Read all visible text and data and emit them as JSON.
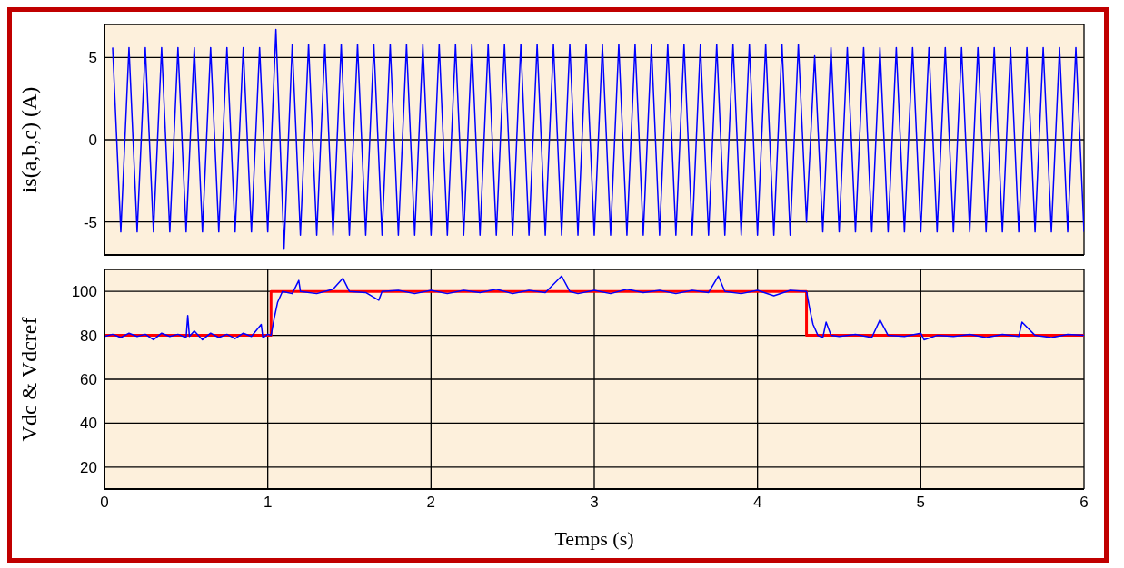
{
  "chart_data": [
    {
      "type": "line",
      "ylabel": "is(a,b,c) (A)",
      "xlim": [
        0,
        6
      ],
      "xticks": [
        0,
        1,
        2,
        3,
        4,
        5,
        6
      ],
      "ylim": [
        -7,
        7
      ],
      "yticks": [
        -5,
        0,
        5
      ],
      "grid": true,
      "tick_labels": "y",
      "series": [
        {
          "color": "#0000ff",
          "x": [
            0.05,
            0.1,
            0.15,
            0.2,
            0.25,
            0.3,
            0.35,
            0.4,
            0.45,
            0.5,
            0.55,
            0.6,
            0.65,
            0.7,
            0.75,
            0.8,
            0.85,
            0.9,
            0.95,
            1,
            1.05,
            1.1,
            1.15,
            1.2,
            1.25,
            1.3,
            1.35,
            1.4,
            1.45,
            1.5,
            1.55,
            1.6,
            1.65,
            1.7,
            1.75,
            1.8,
            1.85,
            1.9,
            1.95,
            2,
            2.05,
            2.1,
            2.15,
            2.2,
            2.25,
            2.3,
            2.35,
            2.4,
            2.45,
            2.5,
            2.55,
            2.6,
            2.65,
            2.7,
            2.75,
            2.8,
            2.85,
            2.9,
            2.95,
            3,
            3.05,
            3.1,
            3.15,
            3.2,
            3.25,
            3.3,
            3.35,
            3.4,
            3.45,
            3.5,
            3.55,
            3.6,
            3.65,
            3.7,
            3.75,
            3.8,
            3.85,
            3.9,
            3.95,
            4,
            4.05,
            4.1,
            4.15,
            4.2,
            4.25,
            4.3,
            4.35,
            4.4,
            4.45,
            4.5,
            4.55,
            4.6,
            4.65,
            4.7,
            4.75,
            4.8,
            4.85,
            4.9,
            4.95,
            5,
            5.05,
            5.1,
            5.15,
            5.2,
            5.25,
            5.3,
            5.35,
            5.4,
            5.45,
            5.5,
            5.55,
            5.6,
            5.65,
            5.7,
            5.75,
            5.8,
            5.85,
            5.9,
            5.95,
            6
          ],
          "values": [
            5.6,
            -5.6,
            5.6,
            -5.6,
            5.6,
            -5.6,
            5.6,
            -5.6,
            5.6,
            -5.6,
            5.6,
            -5.6,
            5.6,
            -5.6,
            5.6,
            -5.6,
            5.6,
            -5.6,
            5.6,
            -5.6,
            6.7,
            -6.6,
            5.8,
            -5.8,
            5.8,
            -5.8,
            5.8,
            -5.8,
            5.8,
            -5.8,
            5.8,
            -5.8,
            5.8,
            -5.8,
            5.8,
            -5.8,
            5.8,
            -5.8,
            5.8,
            -5.8,
            5.8,
            -5.8,
            5.8,
            -5.8,
            5.8,
            -5.8,
            5.8,
            -5.8,
            5.8,
            -5.8,
            5.8,
            -5.8,
            5.8,
            -5.8,
            5.8,
            -5.8,
            5.8,
            -5.8,
            5.8,
            -5.8,
            5.8,
            -5.8,
            5.8,
            -5.8,
            5.8,
            -5.8,
            5.8,
            -5.8,
            5.8,
            -5.8,
            5.8,
            -5.8,
            5.8,
            -5.8,
            5.8,
            -5.8,
            5.8,
            -5.8,
            5.8,
            -5.8,
            5.8,
            -5.8,
            5.8,
            -5.8,
            5.8,
            -5.0,
            5.1,
            -5.6,
            5.6,
            -5.6,
            5.6,
            -5.6,
            5.6,
            -5.6,
            5.6,
            -5.6,
            5.6,
            -5.6,
            5.6,
            -5.6,
            5.6,
            -5.6,
            5.6,
            -5.6,
            5.6,
            -5.6,
            5.6,
            -5.6,
            5.6,
            -5.6,
            5.6,
            -5.6,
            5.6,
            -5.6,
            5.6,
            -5.6,
            5.6,
            -5.6,
            5.6,
            -5.6
          ]
        }
      ]
    },
    {
      "type": "line",
      "ylabel": "Vdc & Vdcref",
      "xlabel": "Temps (s)",
      "xlim": [
        0,
        6
      ],
      "xticks": [
        0,
        1,
        2,
        3,
        4,
        5,
        6
      ],
      "ylim": [
        10,
        110
      ],
      "yticks": [
        20,
        40,
        60,
        80,
        100
      ],
      "grid": true,
      "series": [
        {
          "color": "#ff0000",
          "type": "step",
          "x": [
            0,
            1.02,
            4.3,
            6
          ],
          "values": [
            80,
            100,
            80,
            80
          ]
        },
        {
          "color": "#0000ff",
          "x": [
            0,
            0.05,
            0.1,
            0.15,
            0.2,
            0.25,
            0.3,
            0.35,
            0.4,
            0.45,
            0.5,
            0.51,
            0.52,
            0.55,
            0.6,
            0.65,
            0.7,
            0.75,
            0.8,
            0.85,
            0.9,
            0.96,
            0.97,
            1,
            1.02,
            1.04,
            1.06,
            1.09,
            1.15,
            1.19,
            1.2,
            1.3,
            1.4,
            1.46,
            1.5,
            1.6,
            1.68,
            1.7,
            1.8,
            1.9,
            2,
            2.1,
            2.2,
            2.3,
            2.4,
            2.5,
            2.6,
            2.7,
            2.8,
            2.85,
            2.9,
            3,
            3.1,
            3.2,
            3.3,
            3.4,
            3.5,
            3.6,
            3.7,
            3.76,
            3.8,
            3.9,
            4,
            4.1,
            4.2,
            4.3,
            4.32,
            4.34,
            4.37,
            4.4,
            4.42,
            4.45,
            4.5,
            4.6,
            4.7,
            4.75,
            4.8,
            4.9,
            5,
            5.02,
            5.1,
            5.2,
            5.3,
            5.4,
            5.5,
            5.6,
            5.62,
            5.7,
            5.8,
            5.9,
            6
          ],
          "values": [
            79.5,
            80.5,
            79,
            81,
            79.5,
            80.5,
            78,
            81,
            79.5,
            80.5,
            79,
            89,
            79.5,
            82,
            78,
            81,
            79,
            80.5,
            78.5,
            81,
            79.5,
            85,
            79,
            80.5,
            80,
            88,
            95,
            100,
            99,
            105,
            100,
            99,
            101,
            106,
            100,
            99.5,
            96,
            100,
            100.5,
            99,
            100.5,
            99,
            100.5,
            99.5,
            101,
            99,
            100.5,
            99.5,
            107,
            100,
            99,
            100.5,
            99,
            101,
            99.5,
            100.5,
            99,
            100.5,
            99.5,
            107,
            100,
            99,
            100.5,
            98,
            100.5,
            100,
            92,
            85,
            80,
            79,
            86,
            80,
            79.5,
            80.5,
            79,
            87,
            80,
            79.5,
            81,
            78,
            80,
            79.5,
            80.5,
            79,
            80.5,
            79.5,
            86,
            80,
            79,
            80.5,
            80
          ]
        }
      ]
    }
  ]
}
